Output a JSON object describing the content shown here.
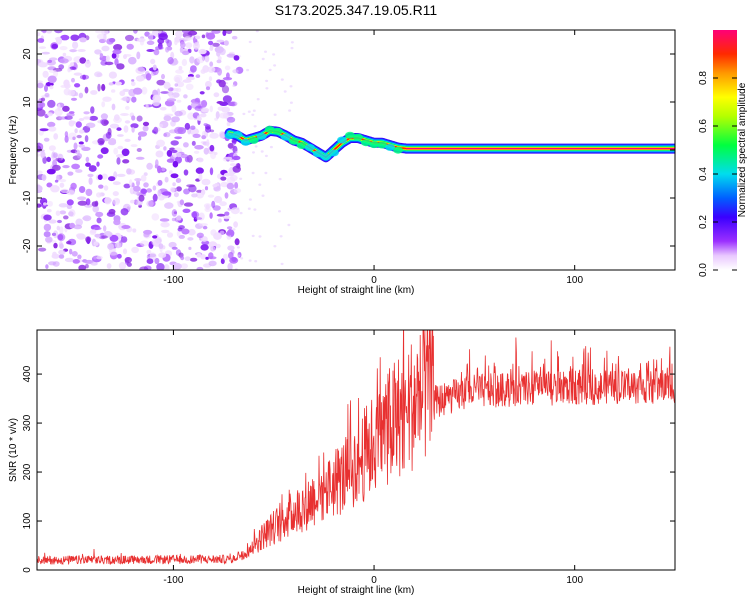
{
  "title": "S173.2025.347.19.05.R11",
  "chart_data": [
    {
      "type": "heatmap",
      "name": "spectrogram",
      "xlabel": "Height of straight line (km)",
      "ylabel": "Frequency (Hz)",
      "xlim": [
        -168,
        150
      ],
      "ylim": [
        -25,
        25
      ],
      "x_ticks": [
        -100,
        0,
        100
      ],
      "y_ticks": [
        -20,
        -10,
        0,
        10,
        20
      ],
      "colorbar": {
        "label": "Normalized spectral amplitude",
        "range": [
          0,
          1
        ],
        "ticks": [
          0.0,
          0.2,
          0.4,
          0.6,
          0.8
        ],
        "tick_labels": [
          "0.0",
          "0.2",
          "0.4",
          "0.6",
          "0.8"
        ]
      },
      "noise_region_x": [
        -168,
        -70
      ],
      "ridge": {
        "x": [
          -72,
          -68,
          -64,
          -60,
          -56,
          -52,
          -48,
          -44,
          -40,
          -36,
          -32,
          -28,
          -24,
          -20,
          -16,
          -12,
          -8,
          -4,
          0,
          4,
          8,
          12,
          16,
          150
        ],
        "y": [
          3.5,
          3.0,
          2.0,
          2.5,
          3.0,
          4.0,
          3.8,
          3.0,
          2.0,
          1.5,
          0.5,
          -0.5,
          -1.5,
          0.0,
          1.5,
          2.5,
          2.5,
          2.0,
          1.5,
          1.5,
          1.0,
          0.5,
          0.3,
          0.3
        ]
      }
    },
    {
      "type": "line",
      "name": "snr",
      "xlabel": "Height of straight line (km)",
      "ylabel": "SNR (10 * v/v)",
      "xlim": [
        -168,
        150
      ],
      "ylim": [
        0,
        490
      ],
      "x_ticks": [
        -100,
        0,
        100
      ],
      "y_ticks": [
        0,
        100,
        200,
        300,
        400
      ],
      "color": "#e83030",
      "envelope": {
        "x": [
          -168,
          -70,
          -62,
          -55,
          -45,
          -35,
          -25,
          -15,
          -5,
          5,
          15,
          25,
          35,
          50,
          80,
          150
        ],
        "y": [
          20,
          22,
          40,
          65,
          95,
          120,
          150,
          175,
          215,
          260,
          300,
          330,
          350,
          365,
          370,
          375
        ]
      }
    }
  ]
}
